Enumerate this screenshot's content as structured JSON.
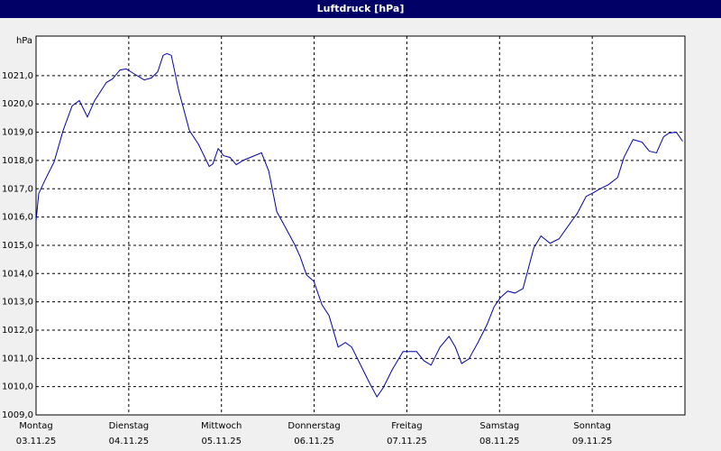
{
  "chart_data": {
    "type": "line",
    "title": "Luftdruck [hPa]",
    "ylabel": "hPa",
    "xlim": [
      0,
      7
    ],
    "ylim": [
      1009,
      1022.4
    ],
    "grid": true,
    "xticks": [
      {
        "value": 0,
        "label": "Montag",
        "date": "03.11.25"
      },
      {
        "value": 1,
        "label": "Dienstag",
        "date": "04.11.25"
      },
      {
        "value": 2,
        "label": "Mittwoch",
        "date": "05.11.25"
      },
      {
        "value": 3,
        "label": "Donnerstag",
        "date": "06.11.25"
      },
      {
        "value": 4,
        "label": "Freitag",
        "date": "07.11.25"
      },
      {
        "value": 5,
        "label": "Samstag",
        "date": "08.11.25"
      },
      {
        "value": 6,
        "label": "Sonntag",
        "date": "09.11.25"
      }
    ],
    "yticks": [
      {
        "value": 1009,
        "label": "1009,0"
      },
      {
        "value": 1010,
        "label": "1010,0"
      },
      {
        "value": 1011,
        "label": "1011,0"
      },
      {
        "value": 1012,
        "label": "1012,0"
      },
      {
        "value": 1013,
        "label": "1013,0"
      },
      {
        "value": 1014,
        "label": "1014,0"
      },
      {
        "value": 1015,
        "label": "1015,0"
      },
      {
        "value": 1016,
        "label": "1016,0"
      },
      {
        "value": 1017,
        "label": "1017,0"
      },
      {
        "value": 1018,
        "label": "1018,0"
      },
      {
        "value": 1019,
        "label": "1019,0"
      },
      {
        "value": 1020,
        "label": "1020,0"
      },
      {
        "value": 1021,
        "label": "1021,0"
      }
    ],
    "color": "#0000aa",
    "x": [
      0,
      0.029,
      0.097,
      0.195,
      0.292,
      0.389,
      0.467,
      0.554,
      0.632,
      0.759,
      0.827,
      0.905,
      0.973,
      1.07,
      1.167,
      1.245,
      1.313,
      1.371,
      1.411,
      1.459,
      1.537,
      1.654,
      1.751,
      1.868,
      1.907,
      1.965,
      2.023,
      2.091,
      2.16,
      2.237,
      2.335,
      2.432,
      2.51,
      2.597,
      2.704,
      2.792,
      2.85,
      2.918,
      2.996,
      3.084,
      3.161,
      3.259,
      3.337,
      3.405,
      3.502,
      3.599,
      3.677,
      3.745,
      3.842,
      3.959,
      4.105,
      4.183,
      4.261,
      4.358,
      4.455,
      4.523,
      4.591,
      4.669,
      4.767,
      4.864,
      4.942,
      5.01,
      5.088,
      5.165,
      5.253,
      5.37,
      5.447,
      5.545,
      5.642,
      5.759,
      5.837,
      5.934,
      6.012,
      6.08,
      6.177,
      6.274,
      6.342,
      6.44,
      6.537,
      6.615,
      6.693,
      6.77,
      6.829,
      6.907,
      6.975
    ],
    "values": [
      1015.87,
      1016.83,
      1017.31,
      1017.95,
      1019.06,
      1019.93,
      1020.12,
      1019.54,
      1020.12,
      1020.76,
      1020.89,
      1021.2,
      1021.24,
      1021.04,
      1020.85,
      1020.92,
      1021.14,
      1021.72,
      1021.78,
      1021.72,
      1020.5,
      1019.06,
      1018.58,
      1017.79,
      1017.88,
      1018.42,
      1018.17,
      1018.11,
      1017.85,
      1018.01,
      1018.14,
      1018.27,
      1017.63,
      1016.19,
      1015.55,
      1015.01,
      1014.59,
      1013.95,
      1013.73,
      1012.9,
      1012.51,
      1011.4,
      1011.56,
      1011.4,
      1010.76,
      1010.12,
      1009.64,
      1009.96,
      1010.6,
      1011.24,
      1011.24,
      1010.92,
      1010.76,
      1011.4,
      1011.78,
      1011.4,
      1010.82,
      1010.98,
      1011.56,
      1012.19,
      1012.83,
      1013.15,
      1013.38,
      1013.31,
      1013.47,
      1014.91,
      1015.33,
      1015.07,
      1015.23,
      1015.77,
      1016.12,
      1016.73,
      1016.86,
      1016.99,
      1017.15,
      1017.4,
      1018.11,
      1018.74,
      1018.65,
      1018.33,
      1018.27,
      1018.84,
      1018.97,
      1019.0,
      1018.68
    ]
  }
}
